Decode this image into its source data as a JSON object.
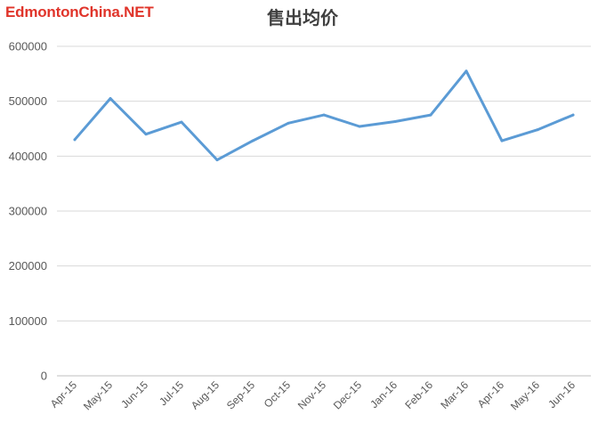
{
  "watermark": "EdmontonChina.NET",
  "chart_data": {
    "type": "line",
    "title": "售出均价",
    "xlabel": "",
    "ylabel": "",
    "categories": [
      "Apr-15",
      "May-15",
      "Jun-15",
      "Jul-15",
      "Aug-15",
      "Sep-15",
      "Oct-15",
      "Nov-15",
      "Dec-15",
      "Jan-16",
      "Feb-16",
      "Mar-16",
      "Apr-16",
      "May-16",
      "Jun-16"
    ],
    "series": [
      {
        "values": [
          430000,
          505000,
          440000,
          462000,
          393000,
          428000,
          460000,
          475000,
          454000,
          463000,
          475000,
          555000,
          428000,
          448000,
          475000
        ],
        "color": "#5b9bd5"
      }
    ],
    "ylim": [
      0,
      600000
    ],
    "yticks": [
      "0",
      "100000",
      "200000",
      "300000",
      "400000",
      "500000",
      "600000"
    ],
    "grid": true,
    "legend": "none"
  }
}
